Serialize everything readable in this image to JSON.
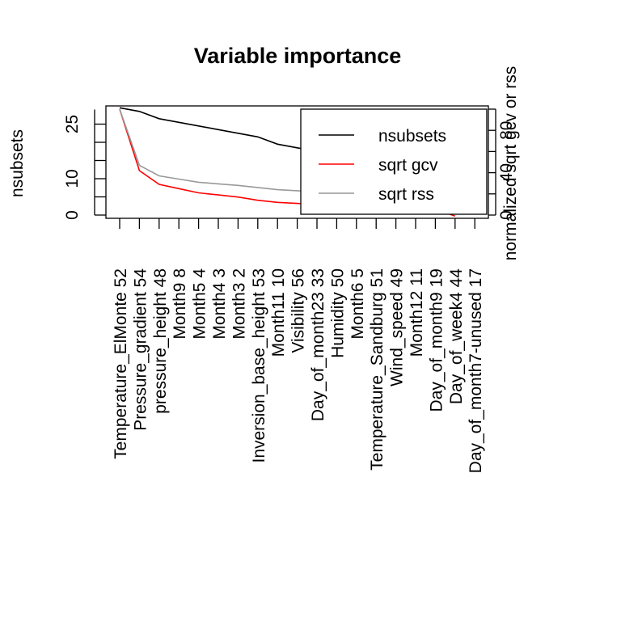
{
  "chart_data": {
    "type": "line",
    "title": "Variable importance",
    "ylabel": "nsubsets",
    "ylabel_right": "normalized sqrt gcv or rss",
    "ylim": [
      0,
      30
    ],
    "ylim_right": [
      0,
      100
    ],
    "yticks": [
      "0",
      "10",
      "25"
    ],
    "yticks_right": [
      "0",
      "40",
      "80"
    ],
    "categories": [
      "Temperature_ElMonte  52",
      "Pressure_gradient  54",
      "pressure_height  48",
      "Month9   8",
      "Month5   4",
      "Month4   3",
      "Month3   2",
      "Inversion_base_height  53",
      "Month11  10",
      "Visibility  56",
      "Day_of_month23  33",
      "Humidity  50",
      "Month6   5",
      "Temperature_Sandburg  51",
      "Wind_speed  49",
      "Month12  11",
      "Day_of_month9  19",
      "Day_of_week4  44",
      "Day_of_month7-unused  17"
    ],
    "series": [
      {
        "name": "nsubsets",
        "color": "#000000",
        "axis": "left",
        "values": [
          29.5,
          28.5,
          26.5,
          25.5,
          24.5,
          23.5,
          22.5,
          21.5,
          19.5,
          18.5,
          17.5,
          16.5,
          15.5,
          14.5,
          13,
          11.5,
          9.5,
          7.5,
          null
        ]
      },
      {
        "name": "sqrt gcv",
        "color": "#ff0000",
        "axis": "right",
        "values": [
          100,
          42,
          29,
          25,
          21,
          19,
          17,
          14,
          12,
          11,
          10,
          9.5,
          9,
          8.5,
          8,
          7.5,
          5.5,
          -1,
          null
        ]
      },
      {
        "name": "sqrt rss",
        "color": "#999999",
        "axis": "right",
        "values": [
          100,
          47,
          37,
          34,
          31,
          29.5,
          28,
          26,
          24,
          23,
          22,
          21,
          20,
          19,
          18,
          17,
          16,
          15,
          null
        ]
      }
    ],
    "legend_position": "top-right",
    "grid": false
  }
}
